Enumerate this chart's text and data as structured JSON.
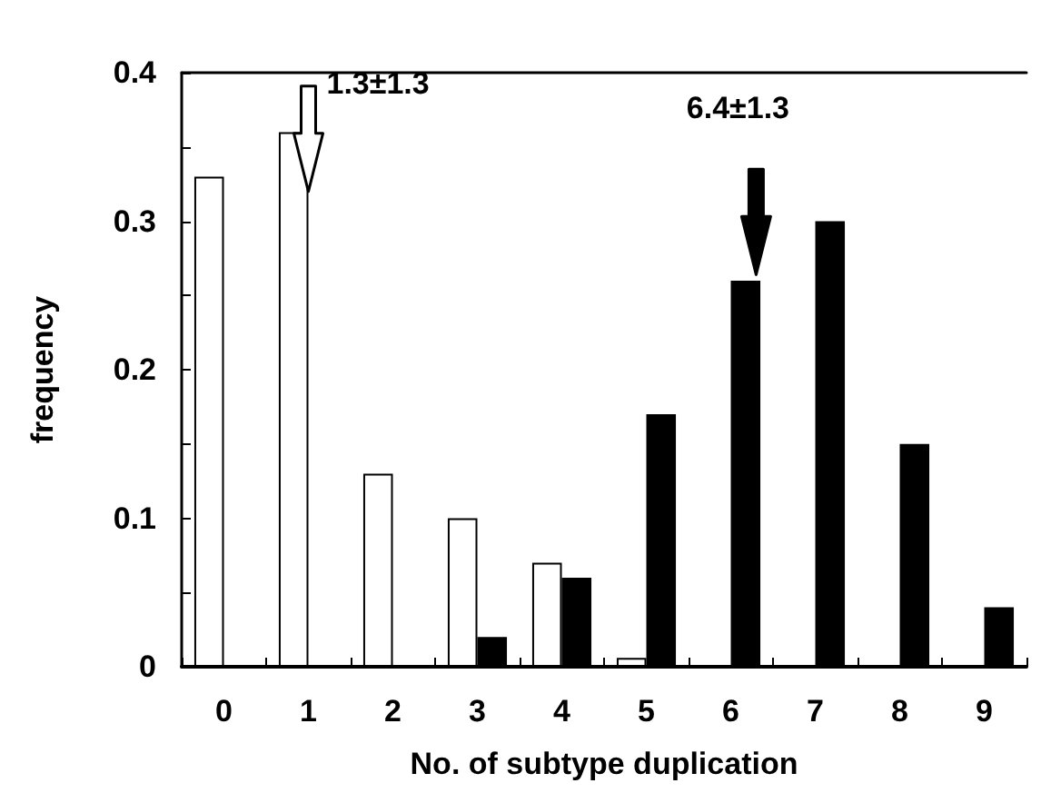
{
  "chart_data": {
    "type": "bar",
    "xlabel": "No. of subtype duplication",
    "ylabel": "frequency",
    "categories": [
      "0",
      "1",
      "2",
      "3",
      "4",
      "5",
      "6",
      "7",
      "8",
      "9"
    ],
    "series": [
      {
        "color": "#ffffff",
        "values": [
          0.33,
          0.36,
          0.13,
          0.1,
          0.07,
          0.006,
          null,
          null,
          null,
          null
        ]
      },
      {
        "color": "#000000",
        "values": [
          null,
          null,
          null,
          0.02,
          0.06,
          0.17,
          0.26,
          0.3,
          0.15,
          0.04
        ]
      }
    ],
    "ylim": [
      0,
      0.4
    ],
    "yticks": [
      0,
      {
        "value": 0.05,
        "label": null
      },
      0.1,
      {
        "value": 0.15,
        "label": null
      },
      0.2,
      {
        "value": 0.25,
        "label": null
      },
      0.3,
      {
        "value": 0.35,
        "label": null
      },
      0.4
    ],
    "annotations": [
      "1.3±1.3",
      "6.4±1.3"
    ],
    "grid": false
  }
}
